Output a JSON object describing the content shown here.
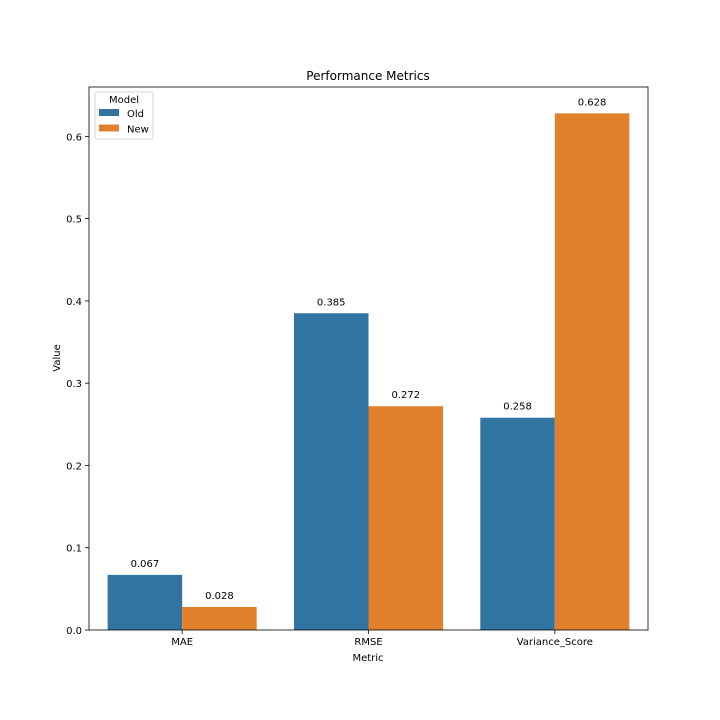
{
  "chart_data": {
    "type": "bar",
    "title": "Performance Metrics",
    "xlabel": "Metric",
    "ylabel": "Value",
    "categories": [
      "MAE",
      "RMSE",
      "Variance_Score"
    ],
    "series": [
      {
        "name": "Old",
        "color": "#3274a1",
        "values": [
          0.067,
          0.385,
          0.258
        ],
        "labels": [
          "0.067",
          "0.385",
          "0.258"
        ]
      },
      {
        "name": "New",
        "color": "#e1812c",
        "values": [
          0.028,
          0.272,
          0.628
        ],
        "labels": [
          "0.028",
          "0.272",
          "0.628"
        ]
      }
    ],
    "ylim": [
      0,
      0.66
    ],
    "yticks": [
      "0.0",
      "0.1",
      "0.2",
      "0.3",
      "0.4",
      "0.5",
      "0.6"
    ],
    "legend": {
      "title": "Model",
      "placement": "top-left"
    }
  }
}
